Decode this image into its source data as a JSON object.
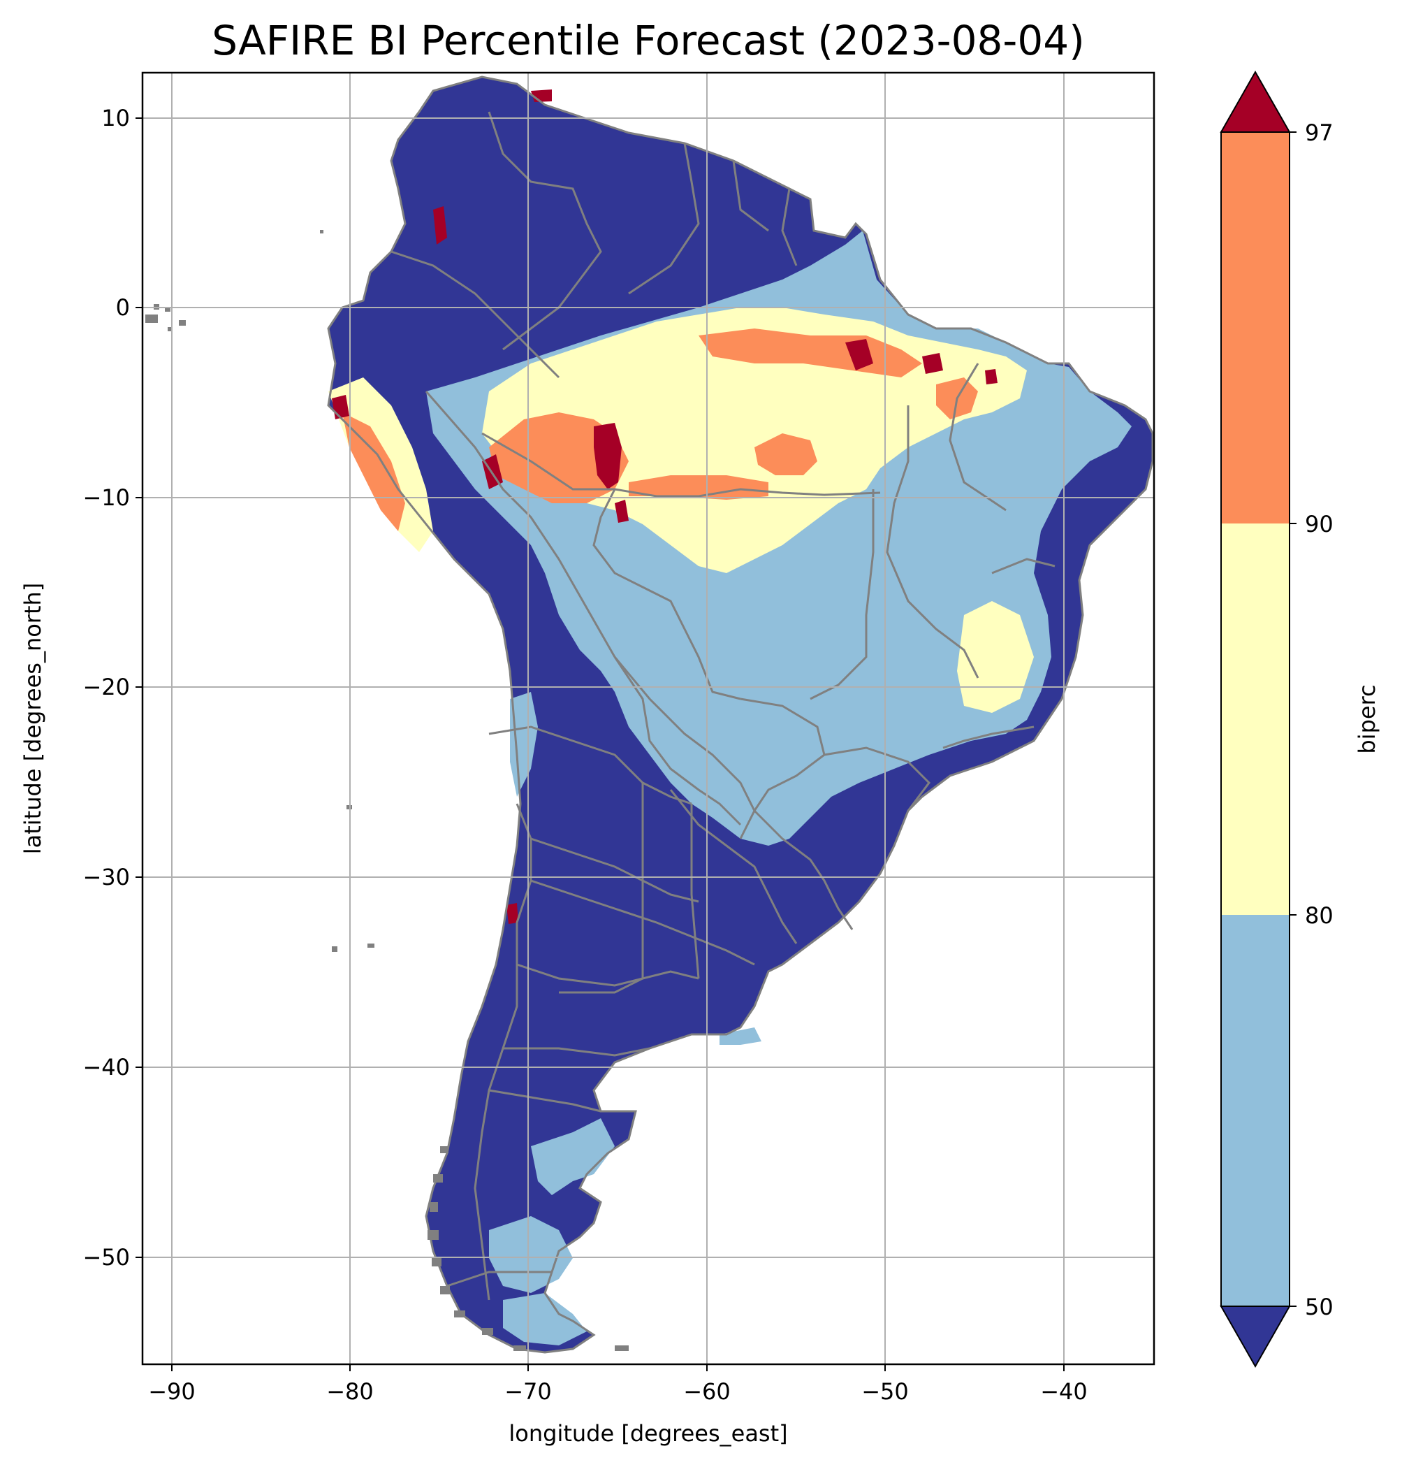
{
  "title": "SAFIRE BI Percentile Forecast (2023-08-04)",
  "xlabel": "longitude [degrees_east]",
  "ylabel": "latitude [degrees_north]",
  "colorbar": {
    "label": "biperc",
    "ticks": [
      "97",
      "90",
      "80",
      "50"
    ]
  },
  "x_ticks": [
    "−90",
    "−80",
    "−70",
    "−60",
    "−50",
    "−40"
  ],
  "y_ticks": [
    "10",
    "0",
    "−10",
    "−20",
    "−30",
    "−40",
    "−50"
  ],
  "chart_data": {
    "type": "heatmap",
    "title": "SAFIRE BI Percentile Forecast (2023-08-04)",
    "xlabel": "longitude [degrees_east]",
    "ylabel": "latitude [degrees_north]",
    "xlim": [
      -91.6,
      -35
    ],
    "ylim": [
      -55.9,
      12.4
    ],
    "x_tick_values": [
      -90,
      -80,
      -70,
      -60,
      -50,
      -40
    ],
    "y_tick_values": [
      10,
      0,
      -10,
      -20,
      -30,
      -40,
      -50
    ],
    "grid": true,
    "colorbar": {
      "variable": "biperc",
      "levels": [
        50,
        80,
        90,
        97
      ],
      "colors": {
        "below_50": "#313695",
        "50_80": "#91bfdb",
        "80_90": "#ffffbf",
        "90_97": "#fc8d59",
        "above_97": "#a50026"
      },
      "extend": "both"
    },
    "border_color": "#808080"
  }
}
